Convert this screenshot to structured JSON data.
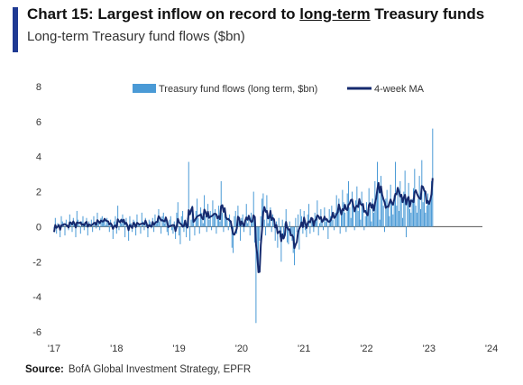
{
  "title": {
    "prefix": "Chart 15: Largest inflow on record to ",
    "underlined": "long-term",
    "suffix": " Treasury funds"
  },
  "subtitle": "Long-term Treasury fund flows ($bn)",
  "source": {
    "label": "Source:",
    "text": "BofA Global Investment Strategy, EPFR"
  },
  "colors": {
    "bars": "#4a9ad6",
    "line": "#152a6e",
    "accent": "#1f3a93"
  },
  "chart_data": {
    "type": "bar",
    "legend_placement": "top",
    "grid": false,
    "ylim": [
      -6,
      8
    ],
    "yticks": [
      8,
      6,
      4,
      2,
      0,
      -2,
      -4,
      -6
    ],
    "xticks": [
      "'17",
      "'18",
      "'19",
      "'20",
      "'21",
      "'22",
      "'23",
      "'24"
    ],
    "series": [
      {
        "name": "Treasury fund flows (long term, $bn)",
        "kind": "bar",
        "frequency": "weekly",
        "start": "2017-01",
        "values": [
          -0.3,
          0.5,
          -0.4,
          0.2,
          0.1,
          -0.6,
          0.6,
          0.3,
          0.2,
          -0.5,
          0.4,
          0.1,
          -0.2,
          0.7,
          0.3,
          -0.3,
          0.5,
          0.2,
          -0.6,
          0.9,
          0.4,
          0.1,
          -0.4,
          0.3,
          0.6,
          -0.2,
          0.2,
          0.5,
          -0.5,
          0.3,
          0.1,
          0.4,
          -0.3,
          0.6,
          0.2,
          -0.1,
          0.8,
          0.3,
          -0.2,
          0.5,
          0.6,
          0.3,
          0.4,
          0.1,
          0.5,
          0.2,
          -0.3,
          0.4,
          0.1,
          -0.7,
          0.3,
          0.6,
          -0.4,
          1.2,
          -0.2,
          0.4,
          0.2,
          0.7,
          0.3,
          -0.6,
          0.5,
          0.1,
          -0.8,
          0.6,
          0.2,
          -0.3,
          0.4,
          0.3,
          -0.5,
          0.7,
          0.2,
          0.1,
          -0.4,
          0.8,
          0.3,
          -0.2,
          0.5,
          0.1,
          -0.6,
          0.4,
          0.3,
          -0.1,
          0.5,
          -0.3,
          0.7,
          0.2,
          0.5,
          1.0,
          0.3,
          -0.4,
          0.6,
          0.8,
          0.2,
          0.5,
          -0.3,
          -0.5,
          0.4,
          0.6,
          -0.2,
          -0.4,
          0.3,
          -0.7,
          0.8,
          1.4,
          -0.5,
          -1.0,
          0.6,
          0.9,
          -0.3,
          0.2,
          -0.6,
          0.5,
          3.7,
          -0.8,
          0.4,
          1.2,
          0.3,
          -0.5,
          0.9,
          1.6,
          0.5,
          -0.4,
          1.1,
          0.8,
          0.2,
          1.8,
          0.6,
          -0.3,
          1.3,
          0.4,
          0.9,
          -0.2,
          1.5,
          0.7,
          1.0,
          -0.4,
          0.6,
          1.2,
          0.3,
          2.6,
          0.8,
          -0.3,
          1.1,
          0.5,
          0.4,
          -0.2,
          0.7,
          0.3,
          -1.2,
          -1.5,
          0.6,
          0.9,
          -0.4,
          1.2,
          0.3,
          -0.8,
          0.5,
          0.7,
          -0.3,
          0.4,
          1.3,
          0.2,
          0.6,
          -0.5,
          0.8,
          0.3,
          2.0,
          -0.9,
          -5.5,
          -1.8,
          -2.2,
          -0.8,
          0.6,
          1.6,
          1.9,
          0.4,
          -0.5,
          1.8,
          0.2,
          0.5,
          1.1,
          -0.3,
          0.7,
          0.2,
          -0.8,
          0.3,
          -1.2,
          0.5,
          -0.6,
          -2.0,
          0.4,
          -0.5,
          0.2,
          1.0,
          -0.9,
          -1.0,
          0.3,
          -0.4,
          -0.8,
          -1.5,
          -2.2,
          0.5,
          -0.3,
          0.7,
          -1.3,
          1.0,
          0.6,
          -0.4,
          0.9,
          -0.2,
          -0.6,
          0.7,
          1.3,
          -0.4,
          0.4,
          0.5,
          -0.3,
          0.8,
          0.6,
          1.5,
          -0.5,
          0.2,
          1.0,
          0.4,
          -0.2,
          1.1,
          0.3,
          0.5,
          -0.7,
          1.0,
          0.6,
          1.2,
          0.4,
          -0.2,
          0.8,
          1.8,
          0.9,
          1.6,
          -0.4,
          0.7,
          2.1,
          1.4,
          0.8,
          -0.3,
          1.9,
          2.6,
          1.1,
          0.5,
          2.0,
          1.2,
          -0.2,
          1.5,
          2.3,
          0.9,
          1.6,
          0.4,
          2.0,
          1.2,
          -0.2,
          0.6,
          1.4,
          0.8,
          2.2,
          1.0,
          0.3,
          1.6,
          0.8,
          2.6,
          1.5,
          3.7,
          2.2,
          0.4,
          2.9,
          1.8,
          1.2,
          -0.3,
          1.6,
          2.1,
          1.1,
          0.6,
          2.4,
          1.3,
          0.7,
          1.8,
          3.7,
          1.2,
          2.2,
          0.9,
          2.6,
          1.6,
          0.5,
          2.0,
          3.2,
          -0.6,
          1.7,
          2.5,
          1.0,
          0.8,
          1.6,
          2.2,
          3.3,
          1.2,
          0.8,
          1.6,
          2.9,
          1.0,
          3.8,
          1.4,
          2.0,
          0.8,
          1.2,
          1.9,
          1.3,
          1.6,
          2.6,
          5.6
        ]
      },
      {
        "name": "4-week MA",
        "kind": "line"
      }
    ]
  }
}
